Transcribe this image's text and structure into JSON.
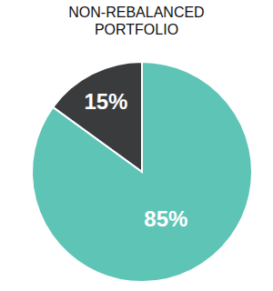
{
  "chart_data": {
    "type": "pie",
    "title": "NON-REBALANCED PORTFOLIO",
    "values": [
      15,
      85
    ],
    "value_labels": [
      "15%",
      "85%"
    ],
    "colors": [
      "#3a3b3d",
      "#5ec4b6"
    ],
    "data_labels": true
  }
}
